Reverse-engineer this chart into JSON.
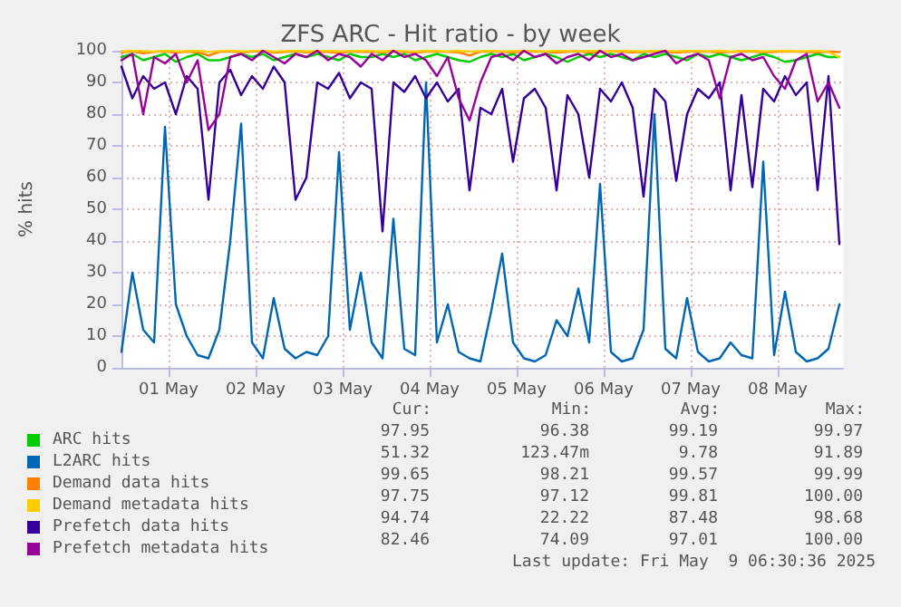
{
  "chart_data": {
    "type": "line",
    "title": "ZFS ARC - Hit ratio - by week",
    "ylabel": "% hits",
    "x": [
      "2025-04-30T23:00",
      "2025-05-01T02:00",
      "2025-05-01T05:00",
      "2025-05-01T08:00",
      "2025-05-01T11:00",
      "2025-05-01T14:00",
      "2025-05-01T17:00",
      "2025-05-01T20:00",
      "2025-05-01T23:00",
      "2025-05-02T02:00",
      "2025-05-02T05:00",
      "2025-05-02T08:00",
      "2025-05-02T11:00",
      "2025-05-02T14:00",
      "2025-05-02T17:00",
      "2025-05-02T20:00",
      "2025-05-02T23:00",
      "2025-05-03T02:00",
      "2025-05-03T05:00",
      "2025-05-03T08:00",
      "2025-05-03T11:00",
      "2025-05-03T14:00",
      "2025-05-03T17:00",
      "2025-05-03T20:00",
      "2025-05-03T23:00",
      "2025-05-04T02:00",
      "2025-05-04T05:00",
      "2025-05-04T08:00",
      "2025-05-04T11:00",
      "2025-05-04T14:00",
      "2025-05-04T17:00",
      "2025-05-04T20:00",
      "2025-05-04T23:00",
      "2025-05-05T02:00",
      "2025-05-05T05:00",
      "2025-05-05T08:00",
      "2025-05-05T11:00",
      "2025-05-05T14:00",
      "2025-05-05T17:00",
      "2025-05-05T20:00",
      "2025-05-05T23:00",
      "2025-05-06T02:00",
      "2025-05-06T05:00",
      "2025-05-06T08:00",
      "2025-05-06T11:00",
      "2025-05-06T14:00",
      "2025-05-06T17:00",
      "2025-05-06T20:00",
      "2025-05-06T23:00",
      "2025-05-07T02:00",
      "2025-05-07T05:00",
      "2025-05-07T08:00",
      "2025-05-07T11:00",
      "2025-05-07T14:00",
      "2025-05-07T17:00",
      "2025-05-07T20:00",
      "2025-05-07T23:00",
      "2025-05-08T02:00",
      "2025-05-08T05:00",
      "2025-05-08T08:00",
      "2025-05-08T11:00",
      "2025-05-08T14:00",
      "2025-05-08T17:00",
      "2025-05-08T20:00",
      "2025-05-08T23:00",
      "2025-05-09T02:00",
      "2025-05-09T05:00"
    ],
    "xlim": [
      "2025-04-30T23:00",
      "2025-05-09T06:00"
    ],
    "xticks": [
      {
        "value": "2025-05-01T12:00",
        "label": "01 May"
      },
      {
        "value": "2025-05-02T12:00",
        "label": "02 May"
      },
      {
        "value": "2025-05-03T12:00",
        "label": "03 May"
      },
      {
        "value": "2025-05-04T12:00",
        "label": "04 May"
      },
      {
        "value": "2025-05-05T12:00",
        "label": "05 May"
      },
      {
        "value": "2025-05-06T12:00",
        "label": "06 May"
      },
      {
        "value": "2025-05-07T12:00",
        "label": "07 May"
      },
      {
        "value": "2025-05-08T12:00",
        "label": "08 May"
      }
    ],
    "ylim": [
      0,
      100
    ],
    "yticks": [
      0,
      10,
      20,
      30,
      40,
      50,
      60,
      70,
      80,
      90,
      100
    ],
    "grid": true,
    "legend": "bottom",
    "series": [
      {
        "name": "ARC hits",
        "color": "#00cc00",
        "values": [
          98,
          99,
          97,
          98,
          99,
          96.5,
          98,
          99,
          97,
          97,
          98,
          99,
          98,
          99,
          97,
          98,
          99,
          98,
          99,
          98,
          97,
          99,
          98,
          98,
          99,
          98,
          99,
          97,
          98,
          99,
          98,
          97,
          96.5,
          98,
          99,
          98,
          99,
          97,
          98,
          99,
          98,
          96.5,
          98,
          99,
          98,
          99,
          98,
          97,
          99,
          98,
          99,
          98,
          97,
          99,
          98,
          99,
          98,
          97,
          98,
          99,
          98,
          96.5,
          97,
          98,
          99,
          98,
          98
        ]
      },
      {
        "name": "L2ARC hits",
        "color": "#0066b3",
        "values": [
          5,
          30,
          12,
          8,
          76,
          20,
          10,
          4,
          3,
          12,
          40,
          77,
          8,
          3,
          22,
          6,
          3,
          5,
          4,
          10,
          68,
          12,
          30,
          8,
          3,
          47,
          6,
          4,
          90,
          8,
          20,
          5,
          3,
          2,
          18,
          36,
          8,
          3,
          2,
          4,
          15,
          10,
          25,
          8,
          58,
          5,
          2,
          3,
          12,
          80,
          6,
          3,
          22,
          5,
          2,
          3,
          8,
          4,
          3,
          65,
          4,
          24,
          5,
          2,
          3,
          6,
          20
        ]
      },
      {
        "name": "Demand data hits",
        "color": "#ff8000",
        "values": [
          99.5,
          99.8,
          99.2,
          99.6,
          99.8,
          99.4,
          99.7,
          99.5,
          98.5,
          99.6,
          99.8,
          99.5,
          99.7,
          99.9,
          99.4,
          99.6,
          99.8,
          99.5,
          99.7,
          99.6,
          99.3,
          99.8,
          99.6,
          99.7,
          99.5,
          99.8,
          99.6,
          99.4,
          99.7,
          99.8,
          99.6,
          99.5,
          98.5,
          99.7,
          99.8,
          99.6,
          99.5,
          99.7,
          99.8,
          99.6,
          99.4,
          99.7,
          99.8,
          99.5,
          99.6,
          99.8,
          99.7,
          99.5,
          99.6,
          99.8,
          99.7,
          99.4,
          99.6,
          99.8,
          99.7,
          99.5,
          99.6,
          99.8,
          99.7,
          99.5,
          99.6,
          99.8,
          99.7,
          99.6,
          99.5,
          99.7,
          99.6
        ]
      },
      {
        "name": "Demand metadata hits",
        "color": "#ffcc00",
        "values": [
          99.8,
          100,
          99.9,
          99.7,
          100,
          99.8,
          99.9,
          100,
          99.6,
          99.9,
          100,
          99.8,
          99.9,
          100,
          99.7,
          99.9,
          100,
          99.8,
          99.9,
          100,
          99.8,
          99.9,
          100,
          99.9,
          99.8,
          100,
          99.9,
          99.7,
          100,
          99.9,
          99.8,
          100,
          99.7,
          99.9,
          100,
          99.8,
          99.9,
          100,
          99.9,
          99.8,
          100,
          99.9,
          99.8,
          100,
          99.9,
          99.7,
          100,
          99.9,
          99.8,
          100,
          99.9,
          99.8,
          100,
          99.9,
          99.8,
          100,
          99.7,
          99.9,
          100,
          99.8,
          99.9,
          100,
          99.8,
          99.9,
          100,
          99.6,
          98
        ]
      },
      {
        "name": "Prefetch data hits",
        "color": "#330099",
        "values": [
          95,
          85,
          92,
          88,
          90,
          80,
          92,
          88,
          53,
          90,
          94,
          86,
          92,
          88,
          95,
          90,
          53,
          60,
          90,
          88,
          93,
          85,
          90,
          88,
          43,
          90,
          87,
          92,
          85,
          90,
          84,
          88,
          56,
          82,
          80,
          88,
          65,
          85,
          88,
          82,
          56,
          86,
          80,
          60,
          88,
          84,
          90,
          82,
          54,
          88,
          84,
          59,
          80,
          88,
          85,
          90,
          56,
          86,
          57,
          88,
          84,
          92,
          86,
          90,
          56,
          92,
          39
        ]
      },
      {
        "name": "Prefetch metadata hits",
        "color": "#990099",
        "values": [
          97,
          99,
          80,
          98,
          96,
          99,
          90,
          97,
          75,
          80,
          98,
          99,
          97,
          100,
          98,
          96,
          99,
          98,
          100,
          97,
          99,
          98,
          95,
          99,
          97,
          100,
          98,
          99,
          97,
          92,
          98,
          85,
          78,
          90,
          98,
          99,
          97,
          100,
          98,
          99,
          96,
          98,
          99,
          97,
          100,
          98,
          99,
          97,
          98,
          99,
          100,
          96,
          98,
          99,
          97,
          85,
          98,
          99,
          97,
          98,
          92,
          88,
          97,
          99,
          84,
          90,
          82
        ]
      }
    ],
    "annotations": [
      "Cur:",
      "Min:",
      "Avg:",
      "Max:",
      "97.95",
      "96.38",
      "99.19",
      "99.97",
      "51.32",
      "123.47m",
      "9.78",
      "91.89",
      "99.65",
      "98.21",
      "99.57",
      "99.99",
      "97.75",
      "97.12",
      "99.81",
      "100.00",
      "94.74",
      "22.22",
      "87.48",
      "98.68",
      "82.46",
      "74.09",
      "97.01",
      "100.00",
      "Last update: Fri May  9 06:30:36 2025"
    ]
  }
}
